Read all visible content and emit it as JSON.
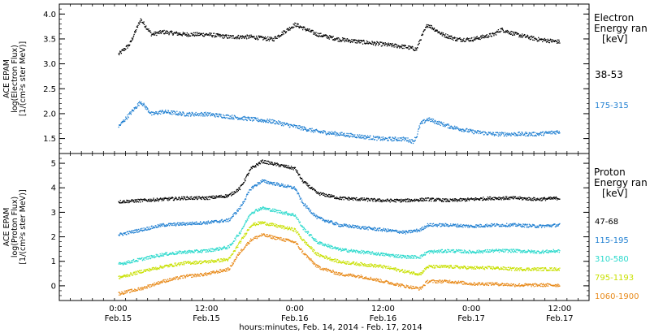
{
  "chart_data": [
    {
      "type": "scatter",
      "panel": "electron",
      "ylabel_lines": [
        "ACE EPAM",
        "log(Electron Flux)",
        "[1/(cm²s ster MeV)]"
      ],
      "ylim": [
        1.2,
        4.2
      ],
      "yticks": [
        "1.5",
        "2.0",
        "2.5",
        "3.0",
        "3.5",
        "4.0"
      ],
      "ytick_values": [
        1.5,
        2.0,
        2.5,
        3.0,
        3.5,
        4.0
      ],
      "legend": {
        "title_lines": [
          "Electron",
          "Energy ran",
          "[keV]"
        ],
        "position": "right"
      },
      "series": [
        {
          "name": "38-53",
          "color": "#000000",
          "x": [
            0,
            3,
            6,
            9,
            12,
            18,
            24,
            30,
            36,
            42,
            48,
            54,
            60,
            66,
            72,
            78,
            81,
            82,
            84,
            88,
            90,
            92,
            96,
            102,
            104,
            108,
            114,
            120
          ],
          "values": [
            3.2,
            3.4,
            3.9,
            3.6,
            3.65,
            3.6,
            3.6,
            3.55,
            3.55,
            3.5,
            3.8,
            3.6,
            3.5,
            3.45,
            3.4,
            3.35,
            3.3,
            3.5,
            3.8,
            3.6,
            3.55,
            3.5,
            3.5,
            3.6,
            3.7,
            3.6,
            3.5,
            3.45
          ]
        },
        {
          "name": "175-315",
          "color": "#1f7fd1",
          "x": [
            0,
            3,
            6,
            9,
            12,
            18,
            24,
            30,
            36,
            42,
            48,
            54,
            60,
            66,
            72,
            78,
            80,
            81,
            82,
            84,
            88,
            90,
            96,
            102,
            108,
            114,
            120
          ],
          "values": [
            1.75,
            2.0,
            2.25,
            2.0,
            2.05,
            2.0,
            2.0,
            1.95,
            1.9,
            1.85,
            1.75,
            1.65,
            1.6,
            1.55,
            1.5,
            1.5,
            1.45,
            1.55,
            1.8,
            1.9,
            1.8,
            1.75,
            1.65,
            1.6,
            1.6,
            1.6,
            1.65
          ]
        }
      ]
    },
    {
      "type": "scatter",
      "panel": "proton",
      "ylabel_lines": [
        "ACE EPAM",
        "log(Proton Flux)",
        "[1/(cm²s ster MeV)]"
      ],
      "ylim": [
        -0.6,
        5.4
      ],
      "yticks": [
        "0",
        "1",
        "2",
        "3",
        "4",
        "5"
      ],
      "ytick_values": [
        0,
        1,
        2,
        3,
        4,
        5
      ],
      "legend": {
        "title_lines": [
          "Proton",
          "Energy ran",
          "[keV]"
        ],
        "position": "right"
      },
      "series": [
        {
          "name": "47-68",
          "color": "#000000",
          "x": [
            0,
            6,
            12,
            18,
            24,
            30,
            33,
            36,
            39,
            42,
            45,
            48,
            50,
            54,
            60,
            66,
            72,
            78,
            84,
            90,
            96,
            102,
            108,
            114,
            120
          ],
          "values": [
            3.45,
            3.5,
            3.55,
            3.6,
            3.6,
            3.7,
            4.0,
            4.8,
            5.1,
            5.0,
            4.9,
            4.8,
            4.3,
            3.8,
            3.6,
            3.55,
            3.5,
            3.5,
            3.55,
            3.5,
            3.55,
            3.6,
            3.6,
            3.55,
            3.6
          ]
        },
        {
          "name": "115-195",
          "color": "#1f7fd1",
          "x": [
            0,
            6,
            12,
            18,
            24,
            30,
            33,
            36,
            39,
            42,
            45,
            48,
            50,
            54,
            60,
            66,
            72,
            78,
            82,
            84,
            90,
            96,
            102,
            108,
            114,
            120
          ],
          "values": [
            2.1,
            2.3,
            2.5,
            2.55,
            2.6,
            2.7,
            3.2,
            4.0,
            4.3,
            4.2,
            4.1,
            4.0,
            3.4,
            2.8,
            2.5,
            2.4,
            2.3,
            2.2,
            2.3,
            2.5,
            2.5,
            2.45,
            2.5,
            2.5,
            2.45,
            2.5
          ]
        },
        {
          "name": "310-580",
          "color": "#2ad9cc",
          "x": [
            0,
            6,
            12,
            18,
            24,
            30,
            33,
            36,
            39,
            42,
            45,
            48,
            50,
            54,
            60,
            66,
            72,
            78,
            82,
            84,
            90,
            96,
            102,
            108,
            114,
            120
          ],
          "values": [
            0.9,
            1.1,
            1.3,
            1.4,
            1.45,
            1.6,
            2.2,
            3.0,
            3.2,
            3.1,
            3.0,
            2.9,
            2.4,
            1.8,
            1.5,
            1.4,
            1.3,
            1.2,
            1.2,
            1.4,
            1.45,
            1.4,
            1.45,
            1.45,
            1.4,
            1.45
          ]
        },
        {
          "name": "795-1193",
          "color": "#c8e000",
          "x": [
            0,
            6,
            12,
            18,
            24,
            30,
            33,
            36,
            39,
            42,
            45,
            48,
            50,
            54,
            60,
            66,
            72,
            78,
            82,
            84,
            90,
            96,
            102,
            108,
            114,
            120
          ],
          "values": [
            0.35,
            0.6,
            0.8,
            0.95,
            1.0,
            1.1,
            1.8,
            2.5,
            2.6,
            2.5,
            2.4,
            2.3,
            1.9,
            1.3,
            1.0,
            0.9,
            0.8,
            0.6,
            0.5,
            0.8,
            0.8,
            0.75,
            0.75,
            0.7,
            0.7,
            0.7
          ]
        },
        {
          "name": "1060-1900",
          "color": "#e88a1a",
          "x": [
            0,
            6,
            12,
            18,
            24,
            30,
            33,
            36,
            39,
            42,
            45,
            48,
            50,
            54,
            60,
            66,
            72,
            78,
            82,
            84,
            90,
            96,
            102,
            108,
            114,
            120
          ],
          "values": [
            -0.3,
            -0.1,
            0.2,
            0.4,
            0.5,
            0.7,
            1.4,
            1.9,
            2.1,
            2.0,
            1.9,
            1.8,
            1.4,
            0.8,
            0.5,
            0.4,
            0.2,
            0.0,
            -0.1,
            0.2,
            0.2,
            0.1,
            0.1,
            0.05,
            0.05,
            0.05
          ]
        }
      ]
    }
  ],
  "x_axis": {
    "range_hours": [
      -16,
      128
    ],
    "tick_hours": [
      0,
      24,
      48,
      72,
      96,
      120
    ],
    "tick_labels": [
      "0:00",
      "12:00",
      "0:00",
      "12:00",
      "0:00",
      "12:00"
    ],
    "tick_dates": [
      "Feb.15",
      "Feb.15",
      "Feb.16",
      "Feb.16",
      "Feb.17",
      "Feb.17"
    ],
    "xlabel": "hours:minutes, Feb. 14, 2014 - Feb. 17, 2014"
  }
}
